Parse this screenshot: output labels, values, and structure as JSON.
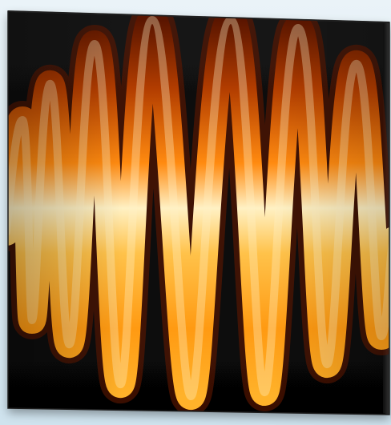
{
  "image": {
    "subject": "wave-tile",
    "colors": {
      "background": "#dbeaf1",
      "panel": "#0b0b0b",
      "panel_edge": "#2a2a2a",
      "wave_dark": "#7a2200",
      "wave_mid": "#e06a00",
      "wave_bright": "#ffd36b",
      "wave_hot": "#fff3c8"
    }
  }
}
